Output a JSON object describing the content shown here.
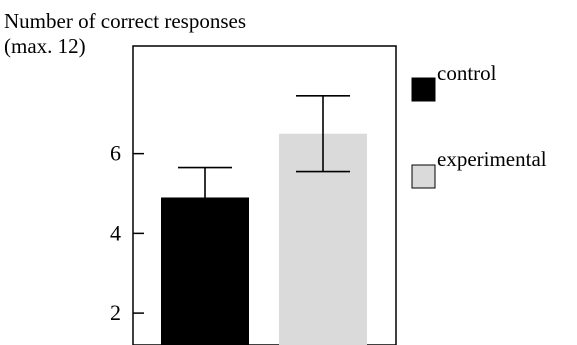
{
  "chart_data": {
    "type": "bar",
    "ylabel_line1": "Number of correct responses",
    "ylabel_line2": "(max. 12)",
    "ylim": [
      1.2,
      8.7
    ],
    "yticks": [
      2,
      4,
      6
    ],
    "grid": false,
    "legend_position": "right",
    "categories": [
      "control",
      "experimental"
    ],
    "values": [
      4.9,
      6.5
    ],
    "error_low": [
      4.2,
      5.55
    ],
    "error_high": [
      5.65,
      7.45
    ],
    "colors": [
      "#000000",
      "#dadada"
    ]
  }
}
